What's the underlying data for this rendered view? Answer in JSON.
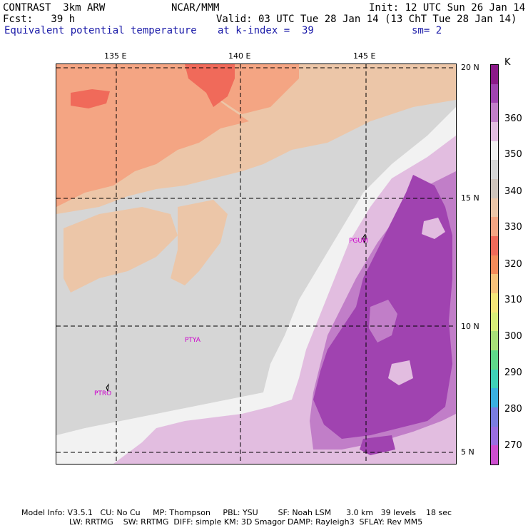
{
  "header": {
    "line1_left": "CONTRAST  3km ARW",
    "line1_mid": "NCAR/MMM",
    "line1_right": "Init: 12 UTC Sun 26 Jan 14",
    "line2_left": "Fcst:   39 h",
    "line2_right": "Valid: 03 UTC Tue 28 Jan 14 (13 ChT Tue 28 Jan 14)",
    "line3_left": "Equivalent potential temperature",
    "line3_mid": "at k-index =  39",
    "line3_right": "sm= 2"
  },
  "map": {
    "lon_ticks": [
      "135 E",
      "140 E",
      "145 E"
    ],
    "lat_ticks": [
      "20 N",
      "15 N",
      "10 N",
      "5 N"
    ],
    "stations": [
      "PGUM",
      "PTYA",
      "PTRO"
    ]
  },
  "colorbar": {
    "unit": "K",
    "labels": [
      "360",
      "350",
      "340",
      "330",
      "320",
      "310",
      "300",
      "290",
      "280",
      "270"
    ],
    "colors": [
      "#8b1a89",
      "#a043b0",
      "#c17ec8",
      "#e2bde0",
      "#f2f2f2",
      "#d6d6d6",
      "#cfc4bb",
      "#ecc6a8",
      "#f4a583",
      "#f06a5a",
      "#f48b5a",
      "#f8c27a",
      "#f6e679",
      "#d8ee79",
      "#a8e078",
      "#5fd98a",
      "#3fd1b8",
      "#3ab0e0",
      "#7a7de0",
      "#9a6ee0",
      "#cd4ecf"
    ]
  },
  "footer": {
    "line1": "Model Info: V3.5.1   CU: No Cu     MP: Thompson     PBL: YSU        SF: Noah LSM      3.0 km   39 levels    18 sec",
    "line2": "LW: RRTMG    SW: RRTMG  DIFF: simple KM: 3D Smagor DAMP: Rayleigh3  SFLAY: Rev MM5"
  }
}
